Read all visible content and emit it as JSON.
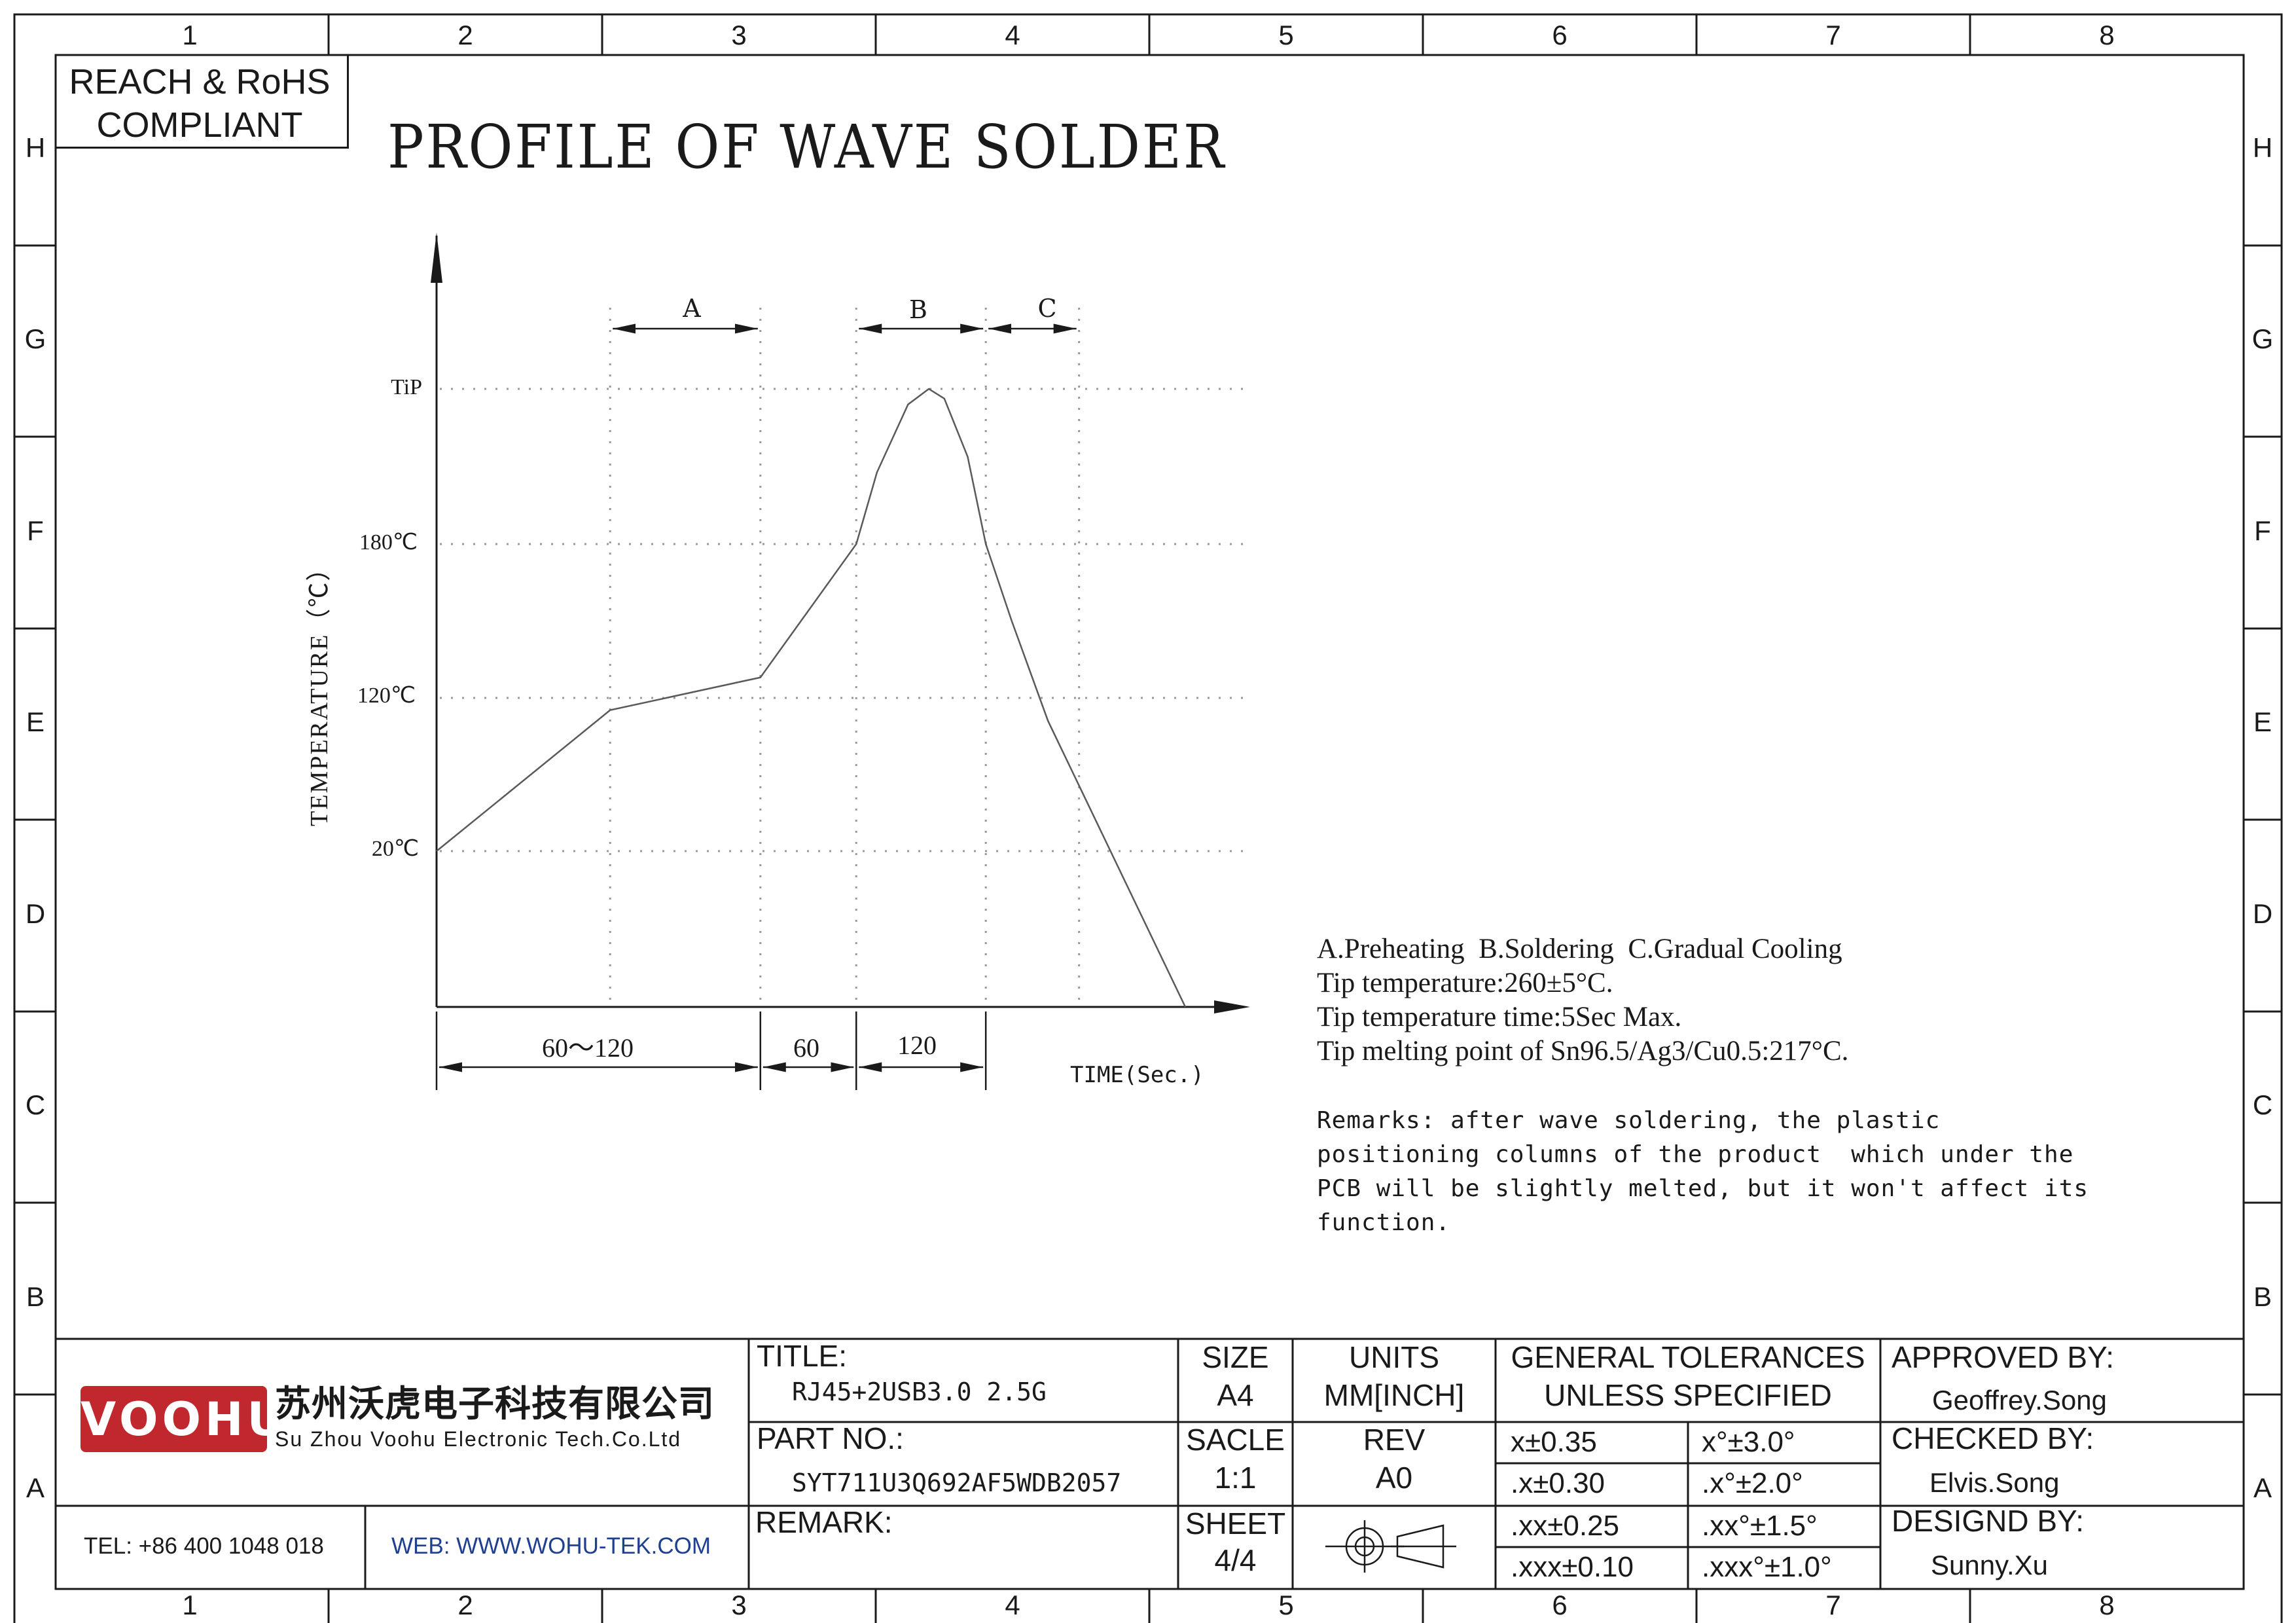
{
  "zones": {
    "columns": [
      "1",
      "2",
      "3",
      "4",
      "5",
      "6",
      "7",
      "8"
    ],
    "rows": [
      "H",
      "G",
      "F",
      "E",
      "D",
      "C",
      "B",
      "A"
    ]
  },
  "compliance": {
    "line1": "REACH & RoHS",
    "line2": "COMPLIANT"
  },
  "drawing_title": "PROFILE OF WAVE SOLDER",
  "chart_data": {
    "type": "line",
    "ylabel": "TEMPERATURE（℃）",
    "xlabel": "TIME(Sec.)",
    "y_ticks": [
      "TiP",
      "180℃",
      "120℃",
      "20℃"
    ],
    "zones": [
      {
        "name": "A",
        "label": "A"
      },
      {
        "name": "B",
        "label": "B"
      },
      {
        "name": "C",
        "label": "C"
      }
    ],
    "x_intervals": [
      "60～120",
      "60",
      "120"
    ],
    "series": [
      {
        "values": [
          {
            "x": 0,
            "y": 20
          },
          {
            "x": 67,
            "y": 112
          },
          {
            "x": 125,
            "y": 128
          },
          {
            "x": 162,
            "y": 180
          },
          {
            "x": 170,
            "y": 217
          },
          {
            "x": 182,
            "y": 252
          },
          {
            "x": 190,
            "y": 260
          },
          {
            "x": 196,
            "y": 255
          },
          {
            "x": 205,
            "y": 225
          },
          {
            "x": 212,
            "y": 180
          },
          {
            "x": 222,
            "y": 150
          },
          {
            "x": 236,
            "y": 105
          },
          {
            "x": 289,
            "y": 0
          }
        ]
      }
    ]
  },
  "notes": {
    "lines": [
      "A.Preheating  B.Soldering  C.Gradual Cooling",
      "Tip temperature:260±5°C.",
      "Tip temperature time:5Sec Max.",
      "Tip melting point of Sn96.5/Ag3/Cu0.5:217°C."
    ],
    "remarks": [
      "Remarks: after wave soldering, the plastic",
      "positioning columns of the product  which under the",
      "PCB will be slightly melted, but it won't affect its",
      "function."
    ]
  },
  "title_block": {
    "logo_text": "VOOHU",
    "company_cn": "苏州沃虎电子科技有限公司",
    "company_en": "Su Zhou Voohu Electronic Tech.Co.Ltd",
    "tel": "TEL: +86 400 1048 018",
    "web": "WEB: WWW.WOHU-TEK.COM",
    "title_label": "TITLE:",
    "title_value": "RJ45+2USB3.0 2.5G",
    "part_label": "PART NO.:",
    "part_value": "SYT711U3Q692AF5WDB2057",
    "remark_label": "REMARK:",
    "size_label": "SIZE",
    "size_value": "A4",
    "scale_label": "SACLE",
    "scale_value": "1:1",
    "sheet_label": "SHEET",
    "sheet_value": "4/4",
    "units_label": "UNITS",
    "units_value": "MM[INCH]",
    "rev_label": "REV",
    "rev_value": "A0",
    "tol_label1": "GENERAL TOLERANCES",
    "tol_label2": "UNLESS SPECIFIED",
    "tolerances": [
      {
        "linear": "x±0.35",
        "angular": "x°±3.0°"
      },
      {
        "linear": ".x±0.30",
        "angular": ".x°±2.0°"
      },
      {
        "linear": ".xx±0.25",
        "angular": ".xx°±1.5°"
      },
      {
        "linear": ".xxx±0.10",
        "angular": ".xxx°±1.0°"
      }
    ],
    "approved_label": "APPROVED BY:",
    "approved_value": "Geoffrey.Song",
    "checked_label": "CHECKED BY:",
    "checked_value": "Elvis.Song",
    "designed_label": "DESIGND BY:",
    "designed_value": "Sunny.Xu"
  },
  "colors": {
    "logo_red": "#c0282d",
    "line": "#1a1a1a",
    "grid": "#9a9a9a",
    "web_blue": "#1f3f8f"
  }
}
